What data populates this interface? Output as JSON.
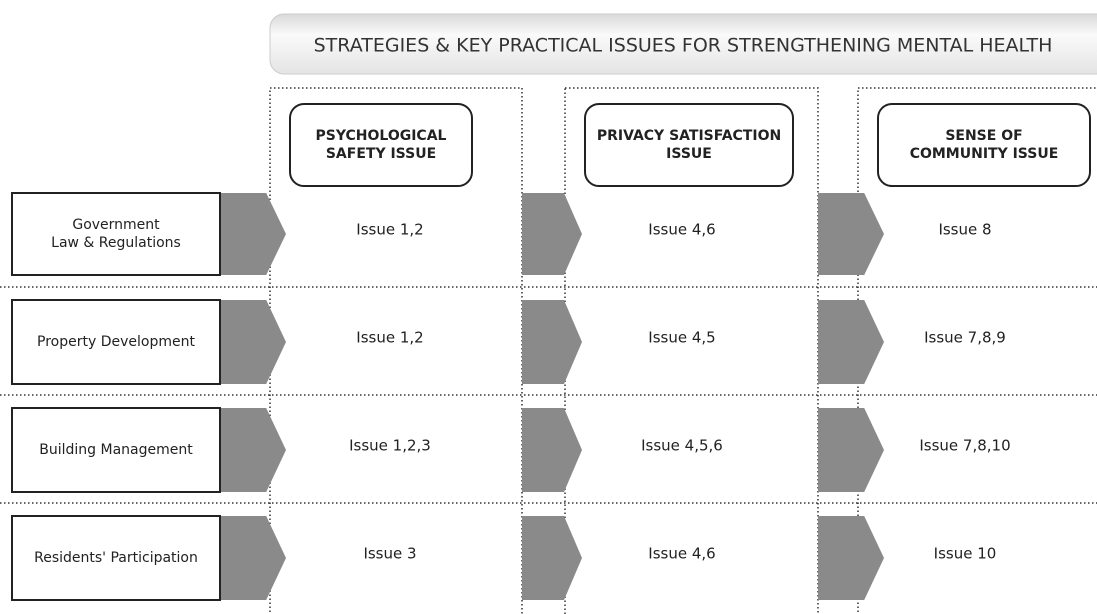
{
  "title": "STRATEGIES & KEY PRACTICAL ISSUES FOR STRENGTHENING MENTAL HEALTH",
  "columns": [
    {
      "lines": [
        "PSYCHOLOGICAL",
        "SAFETY ISSUE"
      ]
    },
    {
      "lines": [
        "PRIVACY SATISFACTION",
        "ISSUE"
      ]
    },
    {
      "lines": [
        "SENSE OF",
        "COMMUNITY ISSUE"
      ]
    }
  ],
  "rows": [
    {
      "lines": [
        "Government",
        "Law & Regulations"
      ],
      "cells": [
        "Issue 1,2",
        "Issue 4,6",
        "Issue 8"
      ]
    },
    {
      "lines": [
        "Property Development"
      ],
      "cells": [
        "Issue 1,2",
        "Issue 4,5",
        "Issue 7,8,9"
      ]
    },
    {
      "lines": [
        "Building Management"
      ],
      "cells": [
        "Issue 1,2,3",
        "Issue 4,5,6",
        "Issue 7,8,10"
      ]
    },
    {
      "lines": [
        "Residents' Participation"
      ],
      "cells": [
        "Issue 3",
        "Issue 4,6",
        "Issue 10"
      ]
    }
  ]
}
